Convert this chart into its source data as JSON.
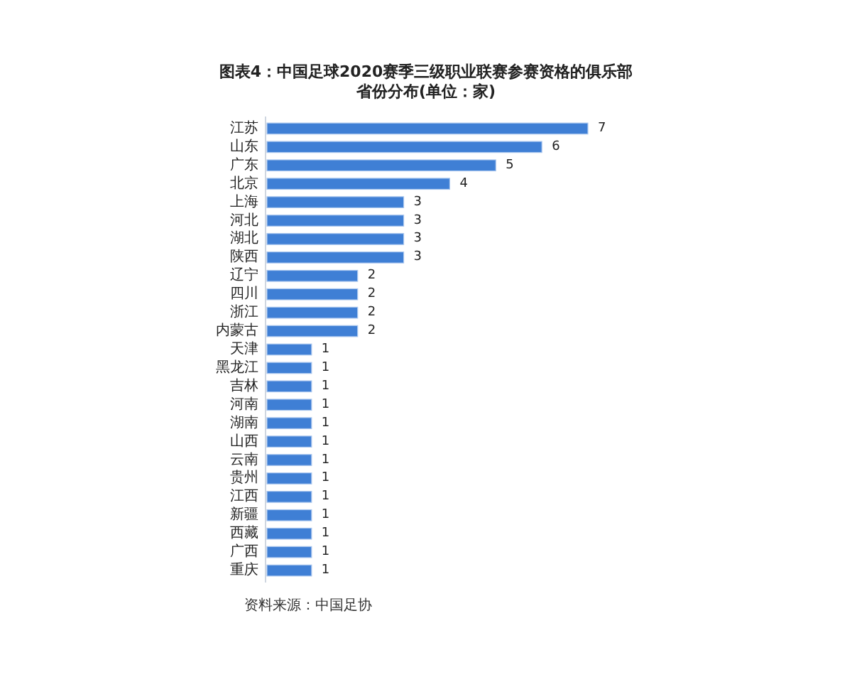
{
  "chart_data": {
    "type": "bar",
    "orientation": "horizontal",
    "title": "图表4：中国足球2020赛季三级职业联赛参赛资格的俱乐部省份分布(单位：家)",
    "categories": [
      "江苏",
      "山东",
      "广东",
      "北京",
      "上海",
      "河北",
      "湖北",
      "陕西",
      "辽宁",
      "四川",
      "浙江",
      "内蒙古",
      "天津",
      "黑龙江",
      "吉林",
      "河南",
      "湖南",
      "山西",
      "云南",
      "贵州",
      "江西",
      "新疆",
      "西藏",
      "广西",
      "重庆"
    ],
    "values": [
      7,
      6,
      5,
      4,
      3,
      3,
      3,
      3,
      2,
      2,
      2,
      2,
      1,
      1,
      1,
      1,
      1,
      1,
      1,
      1,
      1,
      1,
      1,
      1,
      1
    ],
    "color": "#3f7fd5",
    "data_labels": true,
    "annotations": [
      "资料来源：中国足协"
    ]
  }
}
